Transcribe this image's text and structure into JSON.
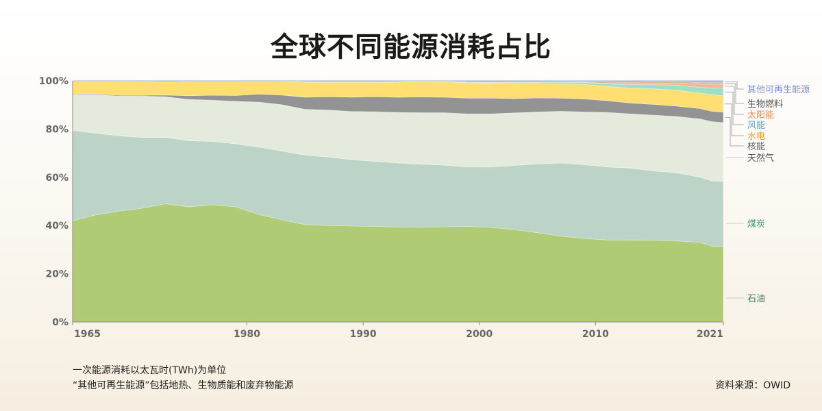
{
  "title": "全球不同能源消耗占比",
  "notes": {
    "line1": "一次能源消耗以太瓦时(TWh)为单位",
    "line2": "“其他可再生能源”包括地热、生物质能和废弃物能源"
  },
  "source": "资料来源：OWID",
  "chart_data": {
    "type": "area",
    "stacked": true,
    "normalized": true,
    "x": [
      1965,
      1967,
      1969,
      1971,
      1973,
      1975,
      1977,
      1979,
      1981,
      1983,
      1985,
      1987,
      1989,
      1991,
      1993,
      1995,
      1997,
      1999,
      2001,
      2003,
      2005,
      2007,
      2009,
      2011,
      2013,
      2015,
      2017,
      2019,
      2020,
      2021
    ],
    "xticks": [
      1965,
      1980,
      1990,
      2000,
      2010,
      2021
    ],
    "yticks": [
      "0%",
      "20%",
      "40%",
      "60%",
      "80%",
      "100%"
    ],
    "ylim": [
      0,
      100
    ],
    "grid": "horizontal dashed",
    "legend": "right, labels aligned to series",
    "series": [
      {
        "name": "石油",
        "color": "#afcb73",
        "label_color": "#3a7a52",
        "values": [
          41.9,
          44.4,
          46.0,
          47.2,
          49.0,
          47.7,
          48.6,
          47.8,
          44.6,
          42.4,
          40.4,
          40.0,
          39.8,
          39.6,
          39.4,
          39.2,
          39.5,
          39.6,
          39.2,
          38.3,
          37.0,
          35.6,
          34.7,
          34.0,
          33.8,
          33.9,
          33.6,
          33.0,
          31.5,
          31.3
        ]
      },
      {
        "name": "煤炭",
        "color": "#bcd3c7",
        "label_color": "#3a9a72",
        "values": [
          37.5,
          33.9,
          31.2,
          29.3,
          27.5,
          27.4,
          26.3,
          26.1,
          27.9,
          28.5,
          28.8,
          28.4,
          27.5,
          27.0,
          26.5,
          26.2,
          25.5,
          24.7,
          25.0,
          26.6,
          28.5,
          30.3,
          30.5,
          30.3,
          30.0,
          28.7,
          28.2,
          27.0,
          27.0,
          27.0
        ]
      },
      {
        "name": "天然气",
        "color": "#e5ebdc",
        "label_color": "#555555",
        "values": [
          14.8,
          16.0,
          16.5,
          17.2,
          16.9,
          17.2,
          17.1,
          17.6,
          18.7,
          19.2,
          19.0,
          19.5,
          20.0,
          20.6,
          21.0,
          21.4,
          21.8,
          22.0,
          22.1,
          21.8,
          21.6,
          21.5,
          21.9,
          22.6,
          22.5,
          23.2,
          23.4,
          24.2,
          24.6,
          24.4
        ]
      },
      {
        "name": "核能",
        "color": "#939393",
        "label_color": "#666666",
        "values": [
          0.3,
          0.3,
          0.3,
          0.3,
          0.7,
          1.5,
          2.0,
          2.4,
          3.3,
          4.0,
          5.0,
          5.5,
          5.9,
          6.2,
          6.3,
          6.5,
          6.4,
          6.5,
          6.5,
          5.9,
          5.8,
          5.4,
          5.4,
          4.9,
          4.5,
          4.4,
          4.3,
          4.3,
          4.3,
          4.3
        ]
      },
      {
        "name": "水电",
        "color": "#ffdf72",
        "label_color": "#e8a020",
        "values": [
          5.4,
          5.3,
          5.9,
          5.8,
          5.5,
          6.0,
          5.8,
          5.9,
          5.3,
          5.7,
          6.3,
          6.0,
          6.2,
          6.0,
          6.3,
          6.3,
          6.4,
          6.4,
          6.2,
          6.4,
          6.0,
          6.0,
          6.0,
          5.9,
          6.2,
          6.5,
          6.6,
          6.4,
          6.9,
          6.8
        ]
      },
      {
        "name": "风能",
        "color": "#9ee0c5",
        "label_color": "#4aa8e0",
        "values": [
          0.0,
          0.0,
          0.0,
          0.0,
          0.0,
          0.0,
          0.0,
          0.0,
          0.0,
          0.0,
          0.0,
          0.0,
          0.0,
          0.0,
          0.0,
          0.1,
          0.1,
          0.1,
          0.2,
          0.3,
          0.4,
          0.6,
          0.8,
          1.0,
          1.4,
          1.7,
          2.1,
          2.4,
          2.8,
          3.1
        ]
      },
      {
        "name": "太阳能",
        "color": "#f2b49a",
        "label_color": "#f08a50",
        "values": [
          0.0,
          0.0,
          0.0,
          0.0,
          0.0,
          0.0,
          0.0,
          0.0,
          0.0,
          0.0,
          0.0,
          0.0,
          0.0,
          0.0,
          0.0,
          0.0,
          0.0,
          0.0,
          0.0,
          0.0,
          0.0,
          0.0,
          0.1,
          0.2,
          0.4,
          0.6,
          0.9,
          1.3,
          1.5,
          1.7
        ]
      },
      {
        "name": "生物燃料",
        "color": "#d8b88e",
        "label_color": "#555555",
        "values": [
          0.0,
          0.0,
          0.0,
          0.0,
          0.0,
          0.0,
          0.0,
          0.0,
          0.1,
          0.1,
          0.2,
          0.2,
          0.2,
          0.2,
          0.2,
          0.2,
          0.2,
          0.2,
          0.2,
          0.2,
          0.2,
          0.3,
          0.4,
          0.6,
          0.6,
          0.6,
          0.7,
          0.7,
          0.7,
          0.7
        ]
      },
      {
        "name": "其他可再生能源",
        "color": "#a8b8d8",
        "label_color": "#7b8fd6",
        "values": [
          0.1,
          0.1,
          0.1,
          0.2,
          0.4,
          0.2,
          0.2,
          0.2,
          0.1,
          0.1,
          0.3,
          0.4,
          0.4,
          0.4,
          0.3,
          0.1,
          0.1,
          0.5,
          0.6,
          0.5,
          0.5,
          0.3,
          0.2,
          0.5,
          0.6,
          0.4,
          0.2,
          0.7,
          0.7,
          0.7
        ]
      }
    ]
  }
}
